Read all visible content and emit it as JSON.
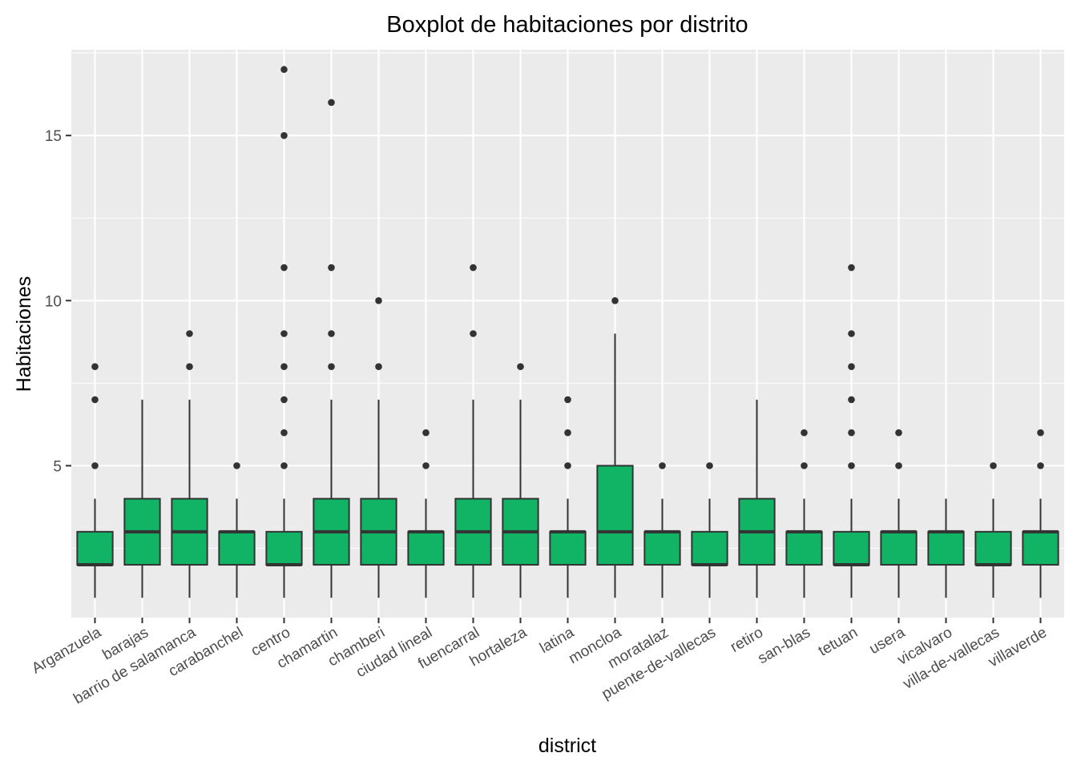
{
  "chart_data": {
    "type": "boxplot",
    "title": "Boxplot de habitaciones por distrito",
    "xlabel": "district",
    "ylabel": "Habitaciones",
    "ylim": [
      0.4,
      17.6
    ],
    "y_ticks": [
      5,
      10,
      15
    ],
    "y_tick_labels": [
      "5",
      "10",
      "15"
    ],
    "grid": true,
    "legend": "none",
    "colors": {
      "box_fill": "#10B464",
      "box_outline": "#333333",
      "panel_background": "#EBEBEB",
      "grid": "#FFFFFF",
      "outlier": "#333333"
    },
    "categories": [
      "Arganzuela",
      "barajas",
      "barrio de salamanca",
      "carabanchel",
      "centro",
      "chamartin",
      "chamberi",
      "ciudad lineal",
      "fuencarral",
      "hortaleza",
      "latina",
      "moncloa",
      "moratalaz",
      "puente-de-vallecas",
      "retiro",
      "san-blas",
      "tetuan",
      "usera",
      "vicalvaro",
      "villa-de-vallecas",
      "villaverde"
    ],
    "boxes": [
      {
        "lower_whisker": 1,
        "q1": 2,
        "median": 2,
        "q3": 3,
        "upper_whisker": 4,
        "outliers": [
          5,
          7,
          8
        ]
      },
      {
        "lower_whisker": 1,
        "q1": 2,
        "median": 3,
        "q3": 4,
        "upper_whisker": 7,
        "outliers": []
      },
      {
        "lower_whisker": 1,
        "q1": 2,
        "median": 3,
        "q3": 4,
        "upper_whisker": 7,
        "outliers": [
          8,
          9
        ]
      },
      {
        "lower_whisker": 1,
        "q1": 2,
        "median": 3,
        "q3": 3,
        "upper_whisker": 4,
        "outliers": [
          5
        ]
      },
      {
        "lower_whisker": 1,
        "q1": 2,
        "median": 2,
        "q3": 3,
        "upper_whisker": 4,
        "outliers": [
          5,
          6,
          7,
          8,
          9,
          11,
          15,
          17
        ]
      },
      {
        "lower_whisker": 1,
        "q1": 2,
        "median": 3,
        "q3": 4,
        "upper_whisker": 7,
        "outliers": [
          8,
          9,
          11,
          16
        ]
      },
      {
        "lower_whisker": 1,
        "q1": 2,
        "median": 3,
        "q3": 4,
        "upper_whisker": 7,
        "outliers": [
          8,
          10
        ]
      },
      {
        "lower_whisker": 1,
        "q1": 2,
        "median": 3,
        "q3": 3,
        "upper_whisker": 4,
        "outliers": [
          5,
          6
        ]
      },
      {
        "lower_whisker": 1,
        "q1": 2,
        "median": 3,
        "q3": 4,
        "upper_whisker": 7,
        "outliers": [
          9,
          11
        ]
      },
      {
        "lower_whisker": 1,
        "q1": 2,
        "median": 3,
        "q3": 4,
        "upper_whisker": 7,
        "outliers": [
          8
        ]
      },
      {
        "lower_whisker": 1,
        "q1": 2,
        "median": 3,
        "q3": 3,
        "upper_whisker": 4,
        "outliers": [
          5,
          6,
          7
        ]
      },
      {
        "lower_whisker": 1,
        "q1": 2,
        "median": 3,
        "q3": 5,
        "upper_whisker": 9,
        "outliers": [
          10
        ]
      },
      {
        "lower_whisker": 1,
        "q1": 2,
        "median": 3,
        "q3": 3,
        "upper_whisker": 4,
        "outliers": [
          5
        ]
      },
      {
        "lower_whisker": 1,
        "q1": 2,
        "median": 2,
        "q3": 3,
        "upper_whisker": 4,
        "outliers": [
          5
        ]
      },
      {
        "lower_whisker": 1,
        "q1": 2,
        "median": 3,
        "q3": 4,
        "upper_whisker": 7,
        "outliers": []
      },
      {
        "lower_whisker": 1,
        "q1": 2,
        "median": 3,
        "q3": 3,
        "upper_whisker": 4,
        "outliers": [
          5,
          6
        ]
      },
      {
        "lower_whisker": 1,
        "q1": 2,
        "median": 2,
        "q3": 3,
        "upper_whisker": 4,
        "outliers": [
          5,
          6,
          7,
          8,
          9,
          11
        ]
      },
      {
        "lower_whisker": 1,
        "q1": 2,
        "median": 3,
        "q3": 3,
        "upper_whisker": 4,
        "outliers": [
          5,
          6
        ]
      },
      {
        "lower_whisker": 1,
        "q1": 2,
        "median": 3,
        "q3": 3,
        "upper_whisker": 4,
        "outliers": []
      },
      {
        "lower_whisker": 1,
        "q1": 2,
        "median": 2,
        "q3": 3,
        "upper_whisker": 4,
        "outliers": [
          5
        ]
      },
      {
        "lower_whisker": 1,
        "q1": 2,
        "median": 3,
        "q3": 3,
        "upper_whisker": 4,
        "outliers": [
          5,
          6
        ]
      }
    ]
  }
}
